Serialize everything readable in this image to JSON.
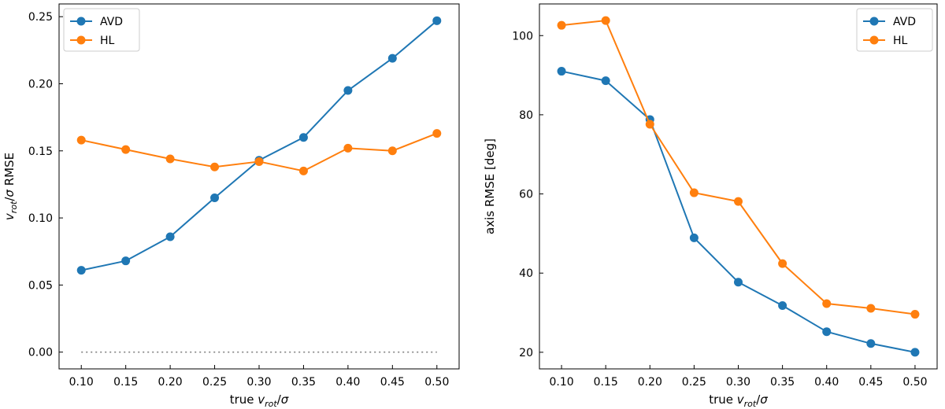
{
  "chart_data": [
    {
      "type": "line",
      "x": [
        0.1,
        0.15,
        0.2,
        0.25,
        0.3,
        0.35,
        0.4,
        0.45,
        0.5
      ],
      "series": [
        {
          "name": "AVD",
          "color": "#1f77b4",
          "values": [
            0.061,
            0.068,
            0.086,
            0.115,
            0.143,
            0.16,
            0.195,
            0.219,
            0.247
          ]
        },
        {
          "name": "HL",
          "color": "#ff7f0e",
          "values": [
            0.158,
            0.151,
            0.144,
            0.138,
            0.142,
            0.135,
            0.152,
            0.15,
            0.163
          ]
        }
      ],
      "reference_line": {
        "y": 0.0,
        "style": "dotted",
        "color": "#808080",
        "x_range": [
          0.1,
          0.5
        ]
      },
      "xlabel": "true vrot/σ",
      "ylabel": "vrot/σ RMSE",
      "xlim": [
        0.075,
        0.525
      ],
      "ylim": [
        -0.0125,
        0.2595
      ],
      "xticks": [
        "0.10",
        "0.15",
        "0.20",
        "0.25",
        "0.30",
        "0.35",
        "0.40",
        "0.45",
        "0.50"
      ],
      "yticks": [
        "0.00",
        "0.05",
        "0.10",
        "0.15",
        "0.20",
        "0.25"
      ],
      "legend_position": "top-left"
    },
    {
      "type": "line",
      "x": [
        0.1,
        0.15,
        0.2,
        0.25,
        0.3,
        0.35,
        0.4,
        0.45,
        0.5
      ],
      "series": [
        {
          "name": "AVD",
          "color": "#1f77b4",
          "values": [
            91.0,
            88.6,
            78.8,
            48.9,
            37.7,
            31.8,
            25.2,
            22.2,
            20.0
          ]
        },
        {
          "name": "HL",
          "color": "#ff7f0e",
          "values": [
            102.6,
            103.8,
            77.6,
            60.3,
            58.1,
            42.4,
            32.3,
            31.1,
            29.6
          ]
        }
      ],
      "xlabel": "true vrot/σ",
      "ylabel": "axis RMSE [deg]",
      "xlim": [
        0.075,
        0.525
      ],
      "ylim": [
        15.8,
        108
      ],
      "xticks": [
        "0.10",
        "0.15",
        "0.20",
        "0.25",
        "0.30",
        "0.35",
        "0.40",
        "0.45",
        "0.50"
      ],
      "yticks": [
        "20",
        "40",
        "60",
        "80",
        "100"
      ],
      "legend_position": "top-right"
    }
  ]
}
